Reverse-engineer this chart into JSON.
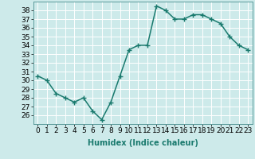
{
  "x": [
    0,
    1,
    2,
    3,
    4,
    5,
    6,
    7,
    8,
    9,
    10,
    11,
    12,
    13,
    14,
    15,
    16,
    17,
    18,
    19,
    20,
    21,
    22,
    23
  ],
  "y": [
    30.5,
    30.0,
    28.5,
    28.0,
    27.5,
    28.0,
    26.5,
    25.5,
    27.5,
    30.5,
    33.5,
    34.0,
    34.0,
    38.5,
    38.0,
    37.0,
    37.0,
    37.5,
    37.5,
    37.0,
    36.5,
    35.0,
    34.0,
    33.5
  ],
  "line_color": "#1a7a6e",
  "marker": "+",
  "marker_size": 4,
  "xlabel": "Humidex (Indice chaleur)",
  "xlim": [
    -0.5,
    23.5
  ],
  "ylim": [
    25.0,
    39.0
  ],
  "yticks": [
    26,
    27,
    28,
    29,
    30,
    31,
    32,
    33,
    34,
    35,
    36,
    37,
    38
  ],
  "xticks": [
    0,
    1,
    2,
    3,
    4,
    5,
    6,
    7,
    8,
    9,
    10,
    11,
    12,
    13,
    14,
    15,
    16,
    17,
    18,
    19,
    20,
    21,
    22,
    23
  ],
  "xtick_labels": [
    "0",
    "1",
    "2",
    "3",
    "4",
    "5",
    "6",
    "7",
    "8",
    "9",
    "10",
    "11",
    "12",
    "13",
    "14",
    "15",
    "16",
    "17",
    "18",
    "19",
    "20",
    "21",
    "22",
    "23"
  ],
  "bg_color": "#cdeaea",
  "grid_color": "#ffffff",
  "border_color": "#5a9a9a",
  "xlabel_fontsize": 7,
  "tick_fontsize": 6.5,
  "line_width": 1.1
}
